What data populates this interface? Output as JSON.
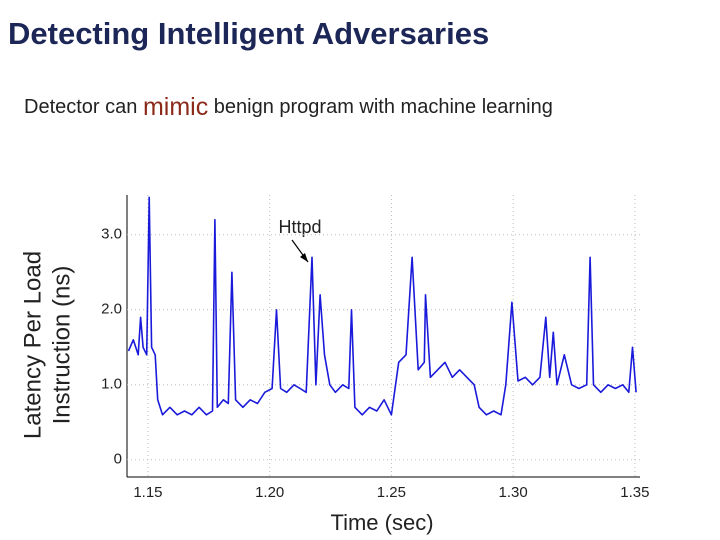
{
  "slide": {
    "title": "Detecting Intelligent Adversaries",
    "subtitle": [
      "Detector can ",
      "mimic",
      " benign program with machine learning"
    ]
  },
  "chart_data": {
    "type": "line",
    "xlabel": "Time (sec)",
    "ylabel": [
      "Latency Per Load",
      "Instruction (ns)"
    ],
    "annotation": "Httpd",
    "xlim": [
      1.1414,
      1.3521
    ],
    "ylim": [
      -0.23,
      3.53
    ],
    "xticks": [
      {
        "value": 1.15,
        "label": "1.15"
      },
      {
        "value": 1.2,
        "label": "1.20"
      },
      {
        "value": 1.25,
        "label": "1.25"
      },
      {
        "value": 1.3,
        "label": "1.30"
      },
      {
        "value": 1.35,
        "label": "1.35"
      }
    ],
    "yticks": [
      0,
      {
        "value": 1,
        "label": "1.0"
      },
      {
        "value": 2,
        "label": "2.0"
      },
      {
        "value": 3,
        "label": "3.0"
      }
    ],
    "grid": true,
    "series": [
      {
        "color": "#1a1adb",
        "x": [
          1.142,
          1.144,
          1.146,
          1.147,
          1.148,
          1.1495,
          1.1505,
          1.1515,
          1.153,
          1.154,
          1.156,
          1.159,
          1.162,
          1.165,
          1.168,
          1.171,
          1.174,
          1.1765,
          1.1775,
          1.1785,
          1.181,
          1.183,
          1.1845,
          1.186,
          1.189,
          1.192,
          1.195,
          1.198,
          1.201,
          1.2028,
          1.2045,
          1.207,
          1.21,
          1.2125,
          1.215,
          1.2174,
          1.219,
          1.2207,
          1.2225,
          1.2247,
          1.227,
          1.23,
          1.2325,
          1.2336,
          1.235,
          1.238,
          1.241,
          1.244,
          1.247,
          1.25,
          1.253,
          1.256,
          1.2585,
          1.261,
          1.2635,
          1.264,
          1.266,
          1.269,
          1.272,
          1.275,
          1.278,
          1.281,
          1.284,
          1.286,
          1.289,
          1.292,
          1.295,
          1.297,
          1.2995,
          1.302,
          1.305,
          1.308,
          1.311,
          1.3134,
          1.315,
          1.3165,
          1.318,
          1.321,
          1.324,
          1.327,
          1.3302,
          1.3316,
          1.333,
          1.336,
          1.339,
          1.342,
          1.345,
          1.3475,
          1.349,
          1.3505
        ],
        "values": [
          1.45,
          1.6,
          1.4,
          1.9,
          1.5,
          1.4,
          3.5,
          1.5,
          1.4,
          0.8,
          0.6,
          0.7,
          0.6,
          0.65,
          0.6,
          0.7,
          0.6,
          0.65,
          3.2,
          0.7,
          0.8,
          0.75,
          2.5,
          0.8,
          0.7,
          0.8,
          0.75,
          0.9,
          0.95,
          2.0,
          0.95,
          0.9,
          1.0,
          0.95,
          0.9,
          2.7,
          1.0,
          2.2,
          1.4,
          1.0,
          0.9,
          1.0,
          0.95,
          2.0,
          0.7,
          0.6,
          0.7,
          0.65,
          0.8,
          0.6,
          1.3,
          1.4,
          2.7,
          1.2,
          1.3,
          2.2,
          1.1,
          1.2,
          1.3,
          1.1,
          1.2,
          1.1,
          1.0,
          0.7,
          0.6,
          0.65,
          0.6,
          1.0,
          2.1,
          1.05,
          1.1,
          1.0,
          1.1,
          1.9,
          1.1,
          1.7,
          1.0,
          1.4,
          1.0,
          0.95,
          1.0,
          2.7,
          1.0,
          0.9,
          1.0,
          0.95,
          1.0,
          0.9,
          1.5,
          0.9
        ]
      }
    ]
  }
}
